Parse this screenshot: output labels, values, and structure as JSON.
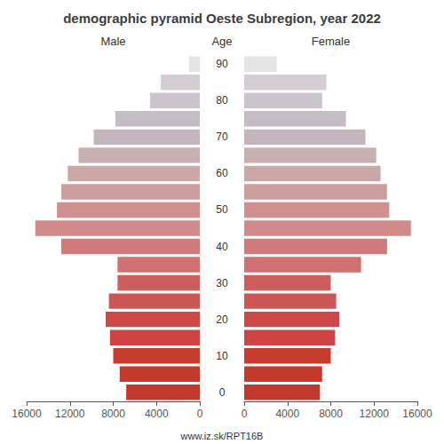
{
  "chart_data": {
    "type": "bar",
    "orientation": "horizontal",
    "title": "demographic pyramid Oeste Subregion, year 2022",
    "ylabel": "Age",
    "annotations": [
      "www.iz.sk/RPT16B"
    ],
    "categories": [
      "0",
      null,
      "10",
      null,
      "20",
      null,
      "30",
      null,
      "40",
      null,
      "50",
      null,
      "60",
      null,
      "70",
      null,
      "80",
      null,
      "90"
    ],
    "series": [
      {
        "name": "Male",
        "values": [
          6800,
          7400,
          8000,
          8300,
          8700,
          8400,
          7600,
          7600,
          12800,
          15200,
          13200,
          12800,
          12200,
          11200,
          9800,
          7800,
          4600,
          3600,
          1000
        ],
        "colors": [
          "#c0392b",
          "#c33a2d",
          "#c63d2f",
          "#cc4444",
          "#cc4848",
          "#cc5555",
          "#cc5e5e",
          "#d07070",
          "#d07a7a",
          "#d08a8a",
          "#d09090",
          "#cc9e9e",
          "#caa8a8",
          "#c8b0b0",
          "#c4b4bc",
          "#c6bcc6",
          "#cac5ca",
          "#d4ced4",
          "#e4e4e4"
        ]
      },
      {
        "name": "Female",
        "values": [
          7000,
          7200,
          8000,
          8400,
          8800,
          8500,
          8000,
          10800,
          13200,
          15400,
          13400,
          13200,
          12600,
          12200,
          11200,
          9400,
          7200,
          7600,
          3000
        ],
        "colors": [
          "#c0392b",
          "#c33a2d",
          "#c63d2f",
          "#cc4444",
          "#cc4848",
          "#cc5555",
          "#cc5e5e",
          "#d07070",
          "#d07a7a",
          "#d08a8a",
          "#d09090",
          "#cc9e9e",
          "#caa8a8",
          "#c8b0b0",
          "#c4b4bc",
          "#c6bcc6",
          "#cac5ca",
          "#d4ced4",
          "#e4e4e4"
        ]
      }
    ],
    "xlim": [
      0,
      16000
    ],
    "xticks": [
      0,
      4000,
      8000,
      12000,
      16000
    ],
    "grid": false
  }
}
